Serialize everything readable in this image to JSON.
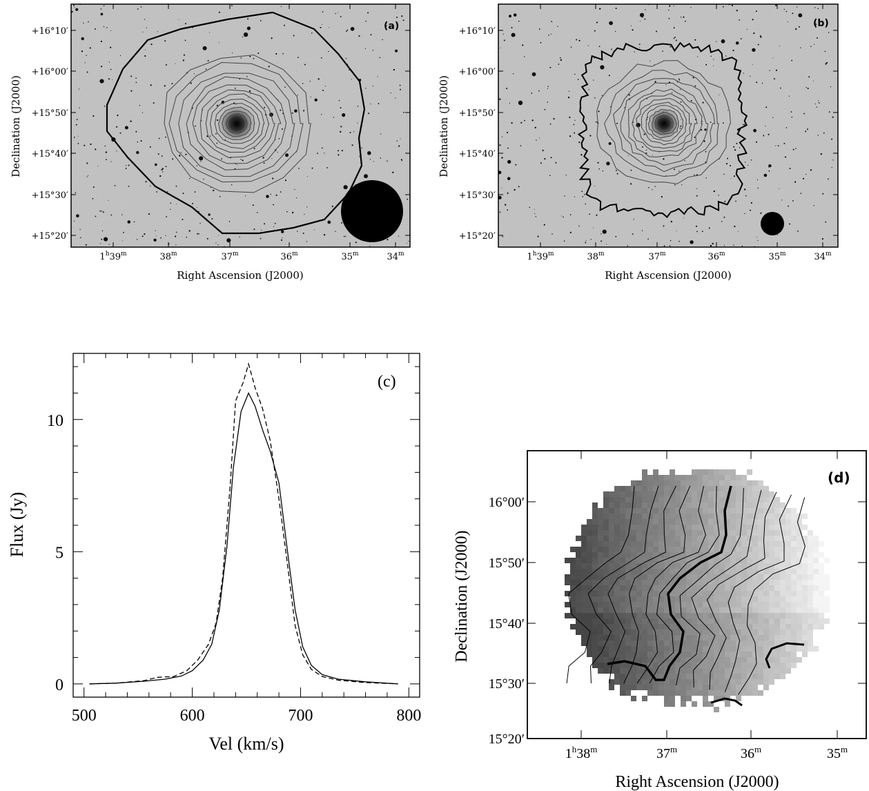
{
  "panels": {
    "a": {
      "tag": "(a)",
      "xlabel": "Right Ascension (J2000)",
      "ylabel": "Declination (J2000)",
      "yticks": [
        "+16°10′",
        "+16°00′",
        "+15°50′",
        "+15°40′",
        "+15°30′",
        "+15°20′"
      ],
      "xticks": [
        {
          "main": "1",
          "sup1": "h",
          "mid": "39",
          "sup2": "m"
        },
        {
          "main": "38",
          "sup2": "m"
        },
        {
          "main": "37",
          "sup2": "m"
        },
        {
          "main": "36",
          "sup2": "m"
        },
        {
          "main": "35",
          "sup2": "m"
        },
        {
          "main": "34",
          "sup2": "m"
        }
      ]
    },
    "b": {
      "tag": "(b)",
      "xlabel": "Right Ascension (J2000)",
      "ylabel": "Declination (J2000)",
      "yticks": [
        "+16°10′",
        "+16°00′",
        "+15°50′",
        "+15°40′",
        "+15°30′",
        "+15°20′"
      ],
      "xticks": [
        {
          "main": "1",
          "sup1": "h",
          "mid": "39",
          "sup2": "m"
        },
        {
          "main": "38",
          "sup2": "m"
        },
        {
          "main": "37",
          "sup2": "m"
        },
        {
          "main": "36",
          "sup2": "m"
        },
        {
          "main": "35",
          "sup2": "m"
        },
        {
          "main": "34",
          "sup2": "m"
        }
      ]
    },
    "d": {
      "tag": "(d)",
      "xlabel": "Right Ascension (J2000)",
      "ylabel": "Declination (J2000)",
      "yticks": [
        "16°00′",
        "15°50′",
        "15°40′",
        "15°30′",
        "15°20′"
      ],
      "xticks": [
        {
          "main": "1",
          "sup1": "h",
          "mid": "38",
          "sup2": "m"
        },
        {
          "main": "37",
          "sup2": "m"
        },
        {
          "main": "36",
          "sup2": "m"
        },
        {
          "main": "35",
          "sup2": "m"
        }
      ]
    }
  },
  "chart_data": {
    "type": "line",
    "tag": "(c)",
    "xlabel": "Vel (km/s)",
    "ylabel": "Flux (Jy)",
    "xlim": [
      490,
      810
    ],
    "ylim": [
      -0.5,
      12.5
    ],
    "xticks": [
      500,
      600,
      700,
      800
    ],
    "yticks": [
      0,
      5,
      10
    ],
    "series": [
      {
        "style": "solid",
        "x": [
          505,
          530,
          555,
          575,
          590,
          600,
          610,
          618,
          625,
          632,
          638,
          645,
          652,
          658,
          665,
          672,
          680,
          688,
          695,
          702,
          710,
          720,
          735,
          760,
          790
        ],
        "y": [
          0.0,
          0.03,
          0.1,
          0.18,
          0.3,
          0.5,
          0.9,
          1.5,
          2.8,
          5.2,
          8.2,
          10.3,
          11.0,
          10.5,
          9.6,
          8.8,
          7.6,
          5.0,
          2.8,
          1.4,
          0.7,
          0.35,
          0.18,
          0.08,
          0.0
        ]
      },
      {
        "style": "dashed",
        "x": [
          505,
          530,
          555,
          568,
          583,
          595,
          605,
          615,
          622,
          628,
          635,
          640,
          647,
          652,
          658,
          665,
          672,
          680,
          688,
          695,
          702,
          710,
          720,
          735,
          760,
          790
        ],
        "y": [
          0.0,
          0.03,
          0.12,
          0.25,
          0.28,
          0.5,
          0.9,
          1.5,
          2.3,
          4.0,
          7.5,
          10.7,
          11.4,
          12.1,
          11.2,
          10.4,
          9.2,
          7.0,
          4.5,
          2.2,
          1.1,
          0.55,
          0.28,
          0.14,
          0.05,
          0.0
        ]
      }
    ]
  },
  "colors": {
    "sky": "#b9b9b9",
    "ink": "#000000"
  }
}
